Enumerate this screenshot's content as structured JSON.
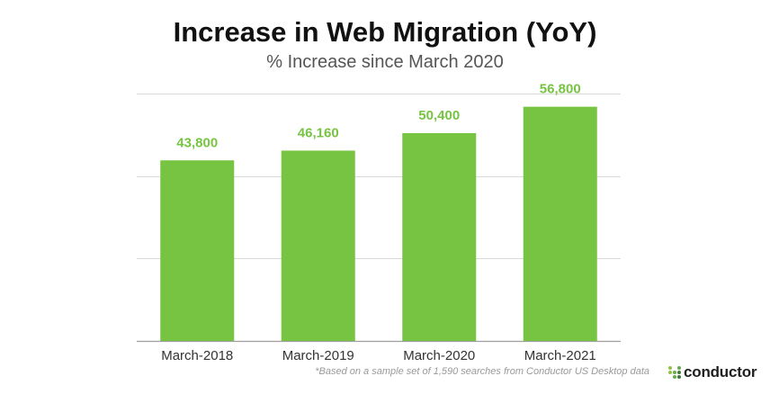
{
  "chart_data": {
    "type": "bar",
    "title": "Increase in Web Migration (YoY)",
    "subtitle": "% Increase since March 2020",
    "categories": [
      "March-2018",
      "March-2019",
      "March-2020",
      "March-2021"
    ],
    "values": [
      43800,
      46160,
      50400,
      56800
    ],
    "value_labels": [
      "43,800",
      "46,160",
      "50,400",
      "56,800"
    ],
    "xlabel": "",
    "ylabel": "",
    "ylim": [
      0,
      60000
    ],
    "grid": true,
    "bar_color": "#76c442",
    "label_color": "#76c442"
  },
  "footnote": "*Based on a sample set of 1,590 searches from Conductor US Desktop data",
  "brand": {
    "name": "conductor",
    "colors": [
      "#8dc63f",
      "#6aa84f",
      "#3c7d3c"
    ]
  }
}
